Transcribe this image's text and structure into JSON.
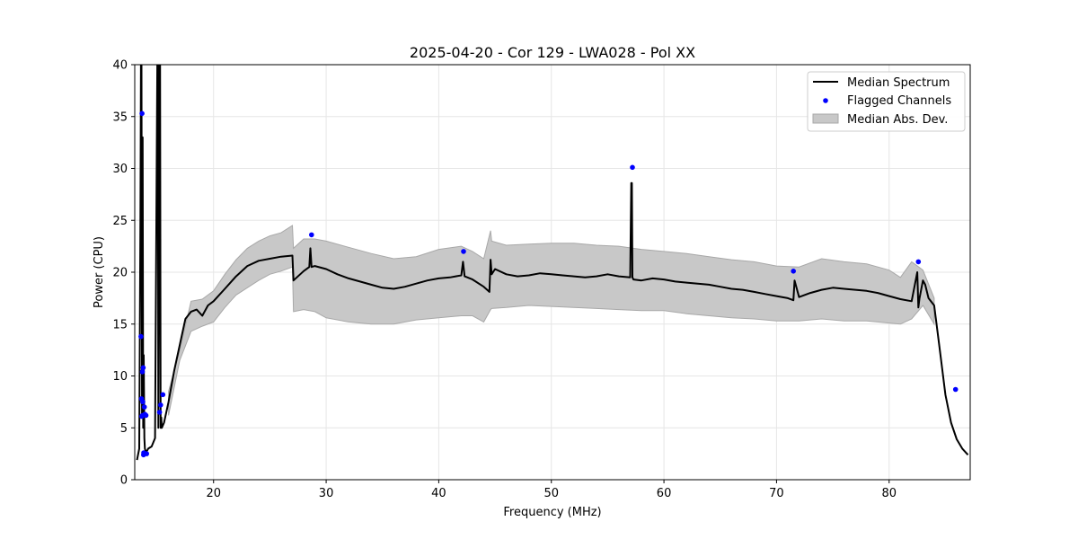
{
  "chart_data": {
    "type": "line",
    "title": "2025-04-20 - Cor 129 - LWA028 - Pol XX",
    "xlabel": "Frequency (MHz)",
    "ylabel": "Power (CPU)",
    "xlim": [
      13.0,
      87.2
    ],
    "ylim": [
      0,
      40
    ],
    "xticks": [
      20,
      30,
      40,
      50,
      60,
      70,
      80
    ],
    "yticks": [
      0,
      5,
      10,
      15,
      20,
      25,
      30,
      35,
      40
    ],
    "grid": true,
    "legend_position": "top-right",
    "legend": [
      "Median Spectrum",
      "Flagged Channels",
      "Median Abs. Dev."
    ],
    "colors": {
      "median": "#000000",
      "flagged": "#0000ff",
      "band_fill": "#c8c8c8",
      "band_edge": "#a8a8a8"
    },
    "series": [
      {
        "name": "Median Spectrum",
        "x": [
          13.2,
          13.4,
          13.5,
          13.55,
          13.6,
          13.65,
          13.7,
          13.75,
          13.8,
          13.85,
          13.9,
          14.0,
          14.2,
          14.5,
          14.8,
          15.0,
          15.05,
          15.1,
          15.2,
          15.25,
          15.3,
          15.35,
          15.4,
          15.6,
          16.0,
          16.5,
          17.0,
          17.5,
          18.0,
          18.5,
          19.0,
          19.5,
          20.0,
          21.0,
          22.0,
          23.0,
          24.0,
          25.0,
          26.0,
          27.0,
          27.1,
          28.0,
          28.5,
          28.6,
          28.7,
          29.0,
          30.0,
          31.0,
          32.0,
          33.0,
          34.0,
          35.0,
          36.0,
          37.0,
          38.0,
          39.0,
          40.0,
          41.0,
          42.0,
          42.15,
          42.3,
          43.0,
          44.0,
          44.5,
          44.6,
          44.7,
          45.0,
          46.0,
          47.0,
          48.0,
          49.0,
          50.0,
          51.0,
          52.0,
          53.0,
          54.0,
          55.0,
          56.0,
          57.0,
          57.1,
          57.15,
          57.2,
          57.3,
          58.0,
          59.0,
          60.0,
          61.0,
          62.0,
          63.0,
          64.0,
          65.0,
          66.0,
          67.0,
          68.0,
          69.0,
          70.0,
          71.0,
          71.5,
          71.6,
          72.0,
          73.0,
          74.0,
          75.0,
          76.0,
          77.0,
          78.0,
          79.0,
          80.0,
          81.0,
          82.0,
          82.5,
          82.6,
          82.7,
          83.0,
          83.2,
          83.5,
          84.0,
          84.5,
          85.0,
          85.5,
          86.0,
          86.5,
          87.0
        ],
        "values": [
          1.9,
          3.0,
          25,
          40,
          40,
          6,
          33,
          5,
          12,
          4,
          3,
          2.6,
          3,
          3.2,
          4,
          40,
          40,
          5,
          40,
          40,
          5,
          6,
          5,
          5.5,
          7.5,
          10.5,
          13,
          15.5,
          16.2,
          16.4,
          15.8,
          16.8,
          17.2,
          18.4,
          19.6,
          20.6,
          21.1,
          21.3,
          21.5,
          21.6,
          19.2,
          20.1,
          20.5,
          22.3,
          20.5,
          20.6,
          20.3,
          19.8,
          19.4,
          19.1,
          18.8,
          18.5,
          18.4,
          18.6,
          18.9,
          19.2,
          19.4,
          19.5,
          19.7,
          21.0,
          19.6,
          19.3,
          18.6,
          18.1,
          21.2,
          19.8,
          20.3,
          19.8,
          19.6,
          19.7,
          19.9,
          19.8,
          19.7,
          19.6,
          19.5,
          19.6,
          19.8,
          19.6,
          19.5,
          28.6,
          28.6,
          19.5,
          19.3,
          19.2,
          19.4,
          19.3,
          19.1,
          19.0,
          18.9,
          18.8,
          18.6,
          18.4,
          18.3,
          18.1,
          17.9,
          17.7,
          17.5,
          17.3,
          19.2,
          17.6,
          18.0,
          18.3,
          18.5,
          18.4,
          18.3,
          18.2,
          18.0,
          17.7,
          17.4,
          17.2,
          20.0,
          16.6,
          17.5,
          19.2,
          18.8,
          17.5,
          16.8,
          12.5,
          8.2,
          5.5,
          3.9,
          3.0,
          2.4
        ]
      },
      {
        "name": "Median Abs. Dev.",
        "x": [
          16.0,
          17.0,
          18.0,
          19.0,
          20.0,
          21.0,
          22.0,
          23.0,
          24.0,
          25.0,
          26.0,
          27.0,
          27.1,
          28.0,
          29.0,
          30.0,
          32.0,
          34.0,
          36.0,
          38.0,
          40.0,
          42.0,
          43.0,
          44.0,
          44.6,
          44.7,
          46.0,
          48.0,
          50.0,
          52.0,
          54.0,
          56.0,
          58.0,
          60.0,
          62.0,
          64.0,
          66.0,
          68.0,
          70.0,
          72.0,
          74.0,
          76.0,
          78.0,
          80.0,
          81.0,
          82.0,
          83.0,
          84.0
        ],
        "upper": [
          8.5,
          12.5,
          17.2,
          17.4,
          18.2,
          19.8,
          21.2,
          22.3,
          23.0,
          23.5,
          23.8,
          24.5,
          22.3,
          23.2,
          23.2,
          23.0,
          22.4,
          21.8,
          21.3,
          21.5,
          22.2,
          22.5,
          22.0,
          21.3,
          24.0,
          23.0,
          22.6,
          22.7,
          22.8,
          22.8,
          22.6,
          22.5,
          22.2,
          22.0,
          21.8,
          21.5,
          21.2,
          21.0,
          20.6,
          20.5,
          21.3,
          21.0,
          20.8,
          20.2,
          19.5,
          21.0,
          20.2,
          17.5
        ],
        "lower": [
          6.2,
          11.5,
          14.3,
          14.8,
          15.2,
          16.6,
          17.8,
          18.5,
          19.2,
          19.8,
          20.1,
          20.5,
          16.2,
          16.4,
          16.2,
          15.6,
          15.2,
          15.0,
          15.0,
          15.4,
          15.6,
          15.8,
          15.8,
          15.2,
          16.4,
          16.5,
          16.6,
          16.8,
          16.7,
          16.6,
          16.5,
          16.4,
          16.3,
          16.3,
          16.0,
          15.8,
          15.6,
          15.5,
          15.3,
          15.3,
          15.5,
          15.3,
          15.3,
          15.1,
          15.0,
          15.5,
          16.8,
          15.0
        ]
      },
      {
        "name": "Flagged Channels",
        "x": [
          13.55,
          13.6,
          13.62,
          13.65,
          13.68,
          13.7,
          13.72,
          13.75,
          13.78,
          13.8,
          13.85,
          13.9,
          14.0,
          14.05,
          15.2,
          15.3,
          15.5,
          28.7,
          42.2,
          57.2,
          71.5,
          82.6,
          85.9
        ],
        "values": [
          13.8,
          7.8,
          6.1,
          35.3,
          10.4,
          6.2,
          7.5,
          10.8,
          2.4,
          2.6,
          7.0,
          6.3,
          6.2,
          2.5,
          6.5,
          7.2,
          8.2,
          23.6,
          22.0,
          30.1,
          20.1,
          21.0,
          8.7
        ]
      }
    ]
  }
}
